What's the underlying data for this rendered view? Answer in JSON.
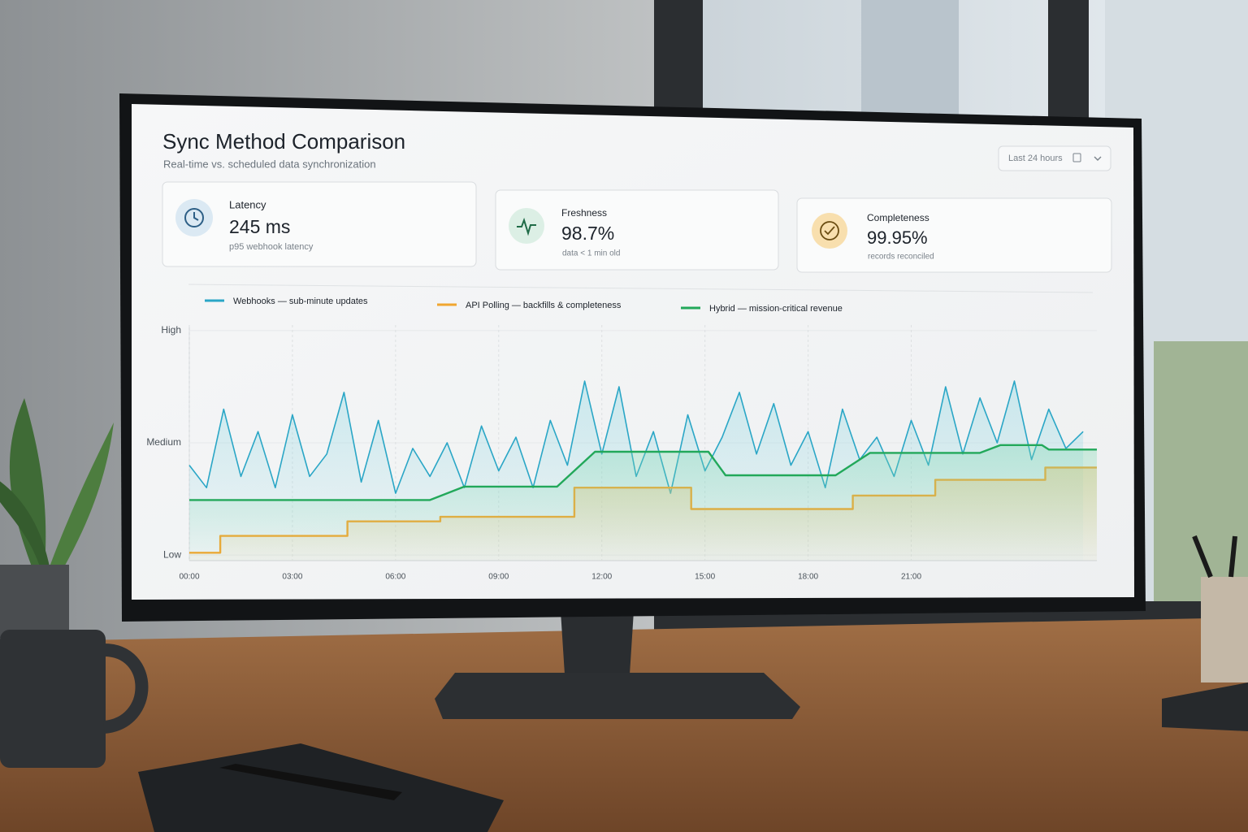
{
  "header": {
    "title": "Sync Method Comparison",
    "subtitle": "Real-time vs. scheduled data synchronization"
  },
  "filter": {
    "label": "Last 24 hours"
  },
  "kpis": [
    {
      "label": "Latency",
      "value": "245 ms",
      "note": "p95 webhook latency"
    },
    {
      "label": "Freshness",
      "value": "98.7%",
      "note": "data < 1 min old"
    },
    {
      "label": "Completeness",
      "value": "99.95%",
      "note": "records reconciled"
    }
  ],
  "chart_data": {
    "type": "line",
    "grid": true,
    "xlim": [
      0,
      26.4
    ],
    "xticks": [
      {
        "value": 0,
        "label": "00:00"
      },
      {
        "value": 3,
        "label": "03:00"
      },
      {
        "value": 6,
        "label": "06:00"
      },
      {
        "value": 9,
        "label": "09:00"
      },
      {
        "value": 12,
        "label": "12:00"
      },
      {
        "value": 15,
        "label": "15:00"
      },
      {
        "value": 18,
        "label": "18:00"
      },
      {
        "value": 21,
        "label": "21:00"
      }
    ],
    "ylim": [
      -0.05,
      2.05
    ],
    "yticks": [
      {
        "value": 0,
        "label": "Low"
      },
      {
        "value": 1,
        "label": "Medium"
      },
      {
        "value": 2,
        "label": "High"
      }
    ],
    "series": [
      {
        "name": "Webhooks — sub-minute updates",
        "color": "#2aa6c6",
        "x": [
          0,
          0.5,
          1,
          1.5,
          2,
          2.5,
          3,
          3.5,
          4,
          4.5,
          5,
          5.5,
          6,
          6.5,
          7,
          7.5,
          8,
          8.5,
          9,
          9.5,
          10,
          10.5,
          11,
          11.5,
          12,
          12.5,
          13,
          13.5,
          14,
          14.5,
          15,
          15.5,
          16,
          16.5,
          17,
          17.5,
          18,
          18.5,
          19,
          19.5,
          20,
          20.5,
          21,
          21.5,
          22,
          22.5,
          23,
          23.5,
          24,
          24.5,
          25,
          25.5,
          26
        ],
        "values": [
          0.8,
          0.6,
          1.3,
          0.7,
          1.1,
          0.6,
          1.25,
          0.7,
          0.9,
          1.45,
          0.65,
          1.2,
          0.55,
          0.95,
          0.7,
          1.0,
          0.6,
          1.15,
          0.75,
          1.05,
          0.6,
          1.2,
          0.8,
          1.55,
          0.9,
          1.5,
          0.7,
          1.1,
          0.55,
          1.25,
          0.75,
          1.05,
          1.45,
          0.9,
          1.35,
          0.8,
          1.1,
          0.6,
          1.3,
          0.85,
          1.05,
          0.7,
          1.2,
          0.8,
          1.5,
          0.9,
          1.4,
          1.0,
          1.55,
          0.85,
          1.3,
          0.95,
          1.1
        ]
      },
      {
        "name": "API Polling — backfills & completeness",
        "color": "#f0a630",
        "x": [
          0,
          0.9,
          0.9,
          4.6,
          4.6,
          7.3,
          7.3,
          11.2,
          11.2,
          14.6,
          14.6,
          19.3,
          19.3,
          21.7,
          21.7,
          24.9,
          24.9,
          26.4
        ],
        "values": [
          0.02,
          0.02,
          0.17,
          0.17,
          0.3,
          0.3,
          0.34,
          0.34,
          0.6,
          0.6,
          0.41,
          0.41,
          0.53,
          0.53,
          0.67,
          0.67,
          0.78,
          0.78
        ]
      },
      {
        "name": "Hybrid — mission-critical revenue",
        "color": "#22a85a",
        "x": [
          0,
          7,
          8,
          10.7,
          11.8,
          15.1,
          15.6,
          18.8,
          19.8,
          23,
          23.6,
          24.8,
          25,
          26.4
        ],
        "values": [
          0.49,
          0.49,
          0.61,
          0.61,
          0.92,
          0.92,
          0.71,
          0.71,
          0.91,
          0.91,
          0.98,
          0.98,
          0.94,
          0.94
        ]
      }
    ]
  }
}
